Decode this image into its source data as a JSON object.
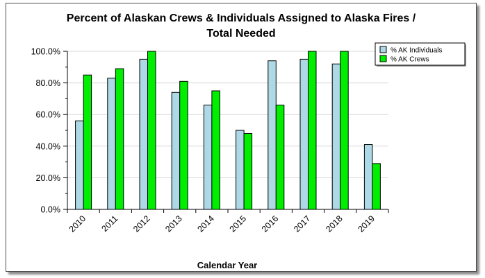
{
  "chart_data": {
    "type": "bar",
    "title_line1": "Percent of Alaskan Crews & Individuals Assigned to Alaska Fires /",
    "title_line2": "Total Needed",
    "xlabel": "Calendar Year",
    "ylabel": "",
    "categories": [
      "2010",
      "2011",
      "2012",
      "2013",
      "2014",
      "2015",
      "2016",
      "2017",
      "2018",
      "2019"
    ],
    "series": [
      {
        "name": "% AK Individuals",
        "color": "#add8e6",
        "values": [
          56,
          83,
          95,
          74,
          66,
          50,
          94,
          95,
          92,
          41
        ]
      },
      {
        "name": "% AK Crews",
        "color": "#00ee00",
        "values": [
          85,
          89,
          100,
          81,
          75,
          48,
          66,
          100,
          100,
          29
        ]
      }
    ],
    "ylim": [
      0,
      100
    ],
    "yticks": [
      "0.0%",
      "20.0%",
      "40.0%",
      "60.0%",
      "80.0%",
      "100.0%"
    ],
    "grid": true,
    "legend_position": "top-right"
  }
}
